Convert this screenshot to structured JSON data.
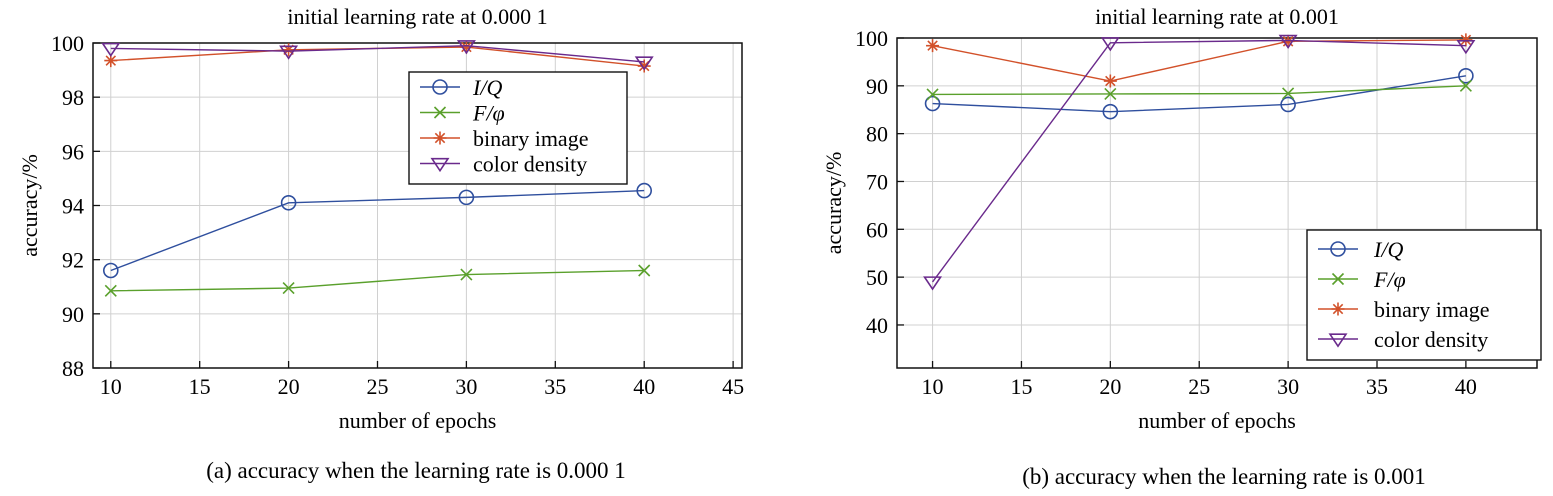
{
  "colors": {
    "I/Q": "#2f4f9e",
    "F/φ": "#5aa02c",
    "binary image": "#d2512a",
    "color density": "#6a2a8c",
    "grid": "#d0d0d0",
    "axis": "#111111"
  },
  "chart_data": [
    {
      "type": "line",
      "title": "initial learning rate at 0.000 1",
      "caption": "(a) accuracy when the learning rate is 0.000 1",
      "xlabel": "number of epochs",
      "ylabel": "accuracy/%",
      "xlim": [
        9,
        45.5
      ],
      "ylim": [
        88,
        100
      ],
      "xticks": [
        10,
        15,
        20,
        25,
        30,
        35,
        40,
        45
      ],
      "yticks": [
        88,
        90,
        92,
        94,
        96,
        98,
        100
      ],
      "grid": true,
      "legend_position": "top-right",
      "x": [
        10,
        20,
        30,
        40
      ],
      "series": [
        {
          "name": "I/Q",
          "marker": "circle",
          "values": [
            91.6,
            94.1,
            94.3,
            94.55
          ]
        },
        {
          "name": "F/φ",
          "marker": "x",
          "values": [
            90.85,
            90.95,
            91.45,
            91.6
          ]
        },
        {
          "name": "binary image",
          "marker": "star",
          "values": [
            99.35,
            99.75,
            99.85,
            99.15
          ]
        },
        {
          "name": "color density",
          "marker": "triangle-down",
          "values": [
            99.8,
            99.7,
            99.9,
            99.3
          ]
        }
      ]
    },
    {
      "type": "line",
      "title": "initial learning rate at 0.001",
      "caption": "(b) accuracy when the learning rate is 0.001",
      "xlabel": "number of epochs",
      "ylabel": "accuracy/%",
      "xlim": [
        8,
        44
      ],
      "ylim": [
        31,
        100
      ],
      "xticks": [
        10,
        15,
        20,
        25,
        30,
        35,
        40
      ],
      "yticks": [
        40,
        50,
        60,
        70,
        80,
        90,
        100
      ],
      "grid": true,
      "legend_position": "bottom-right",
      "x": [
        10,
        20,
        30,
        40
      ],
      "series": [
        {
          "name": "I/Q",
          "marker": "circle",
          "values": [
            86.3,
            84.6,
            86.1,
            92.1
          ]
        },
        {
          "name": "F/φ",
          "marker": "x",
          "values": [
            88.2,
            88.3,
            88.4,
            90.0
          ]
        },
        {
          "name": "binary image",
          "marker": "star",
          "values": [
            98.4,
            91.0,
            99.3,
            99.6
          ]
        },
        {
          "name": "color density",
          "marker": "triangle-down",
          "values": [
            49.0,
            99.0,
            99.5,
            98.4
          ]
        }
      ]
    }
  ]
}
